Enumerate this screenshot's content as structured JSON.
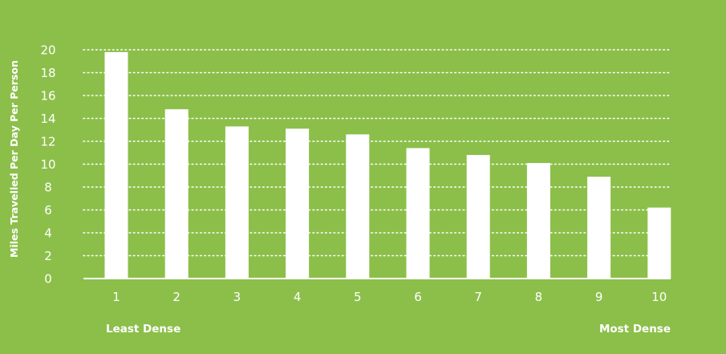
{
  "colors": {
    "background": "#8cbf4a",
    "bar": "#ffffff",
    "grid": "#ffffff",
    "text": "#ffffff"
  },
  "chart_data": {
    "type": "bar",
    "categories": [
      "1",
      "2",
      "3",
      "4",
      "5",
      "6",
      "7",
      "8",
      "9",
      "10"
    ],
    "values": [
      19.8,
      14.8,
      13.3,
      13.1,
      12.6,
      11.4,
      10.8,
      10.1,
      8.9,
      6.2
    ],
    "title": "",
    "xlabel": "",
    "ylabel": "Miles Travelled Per Day Per Person",
    "ylim": [
      0,
      20
    ],
    "yticks": [
      "0",
      "2",
      "4",
      "6",
      "8",
      "10",
      "12",
      "14",
      "16",
      "18",
      "20"
    ],
    "grid": true,
    "x_annotation_left": "Least Dense",
    "x_annotation_right": "Most Dense"
  }
}
